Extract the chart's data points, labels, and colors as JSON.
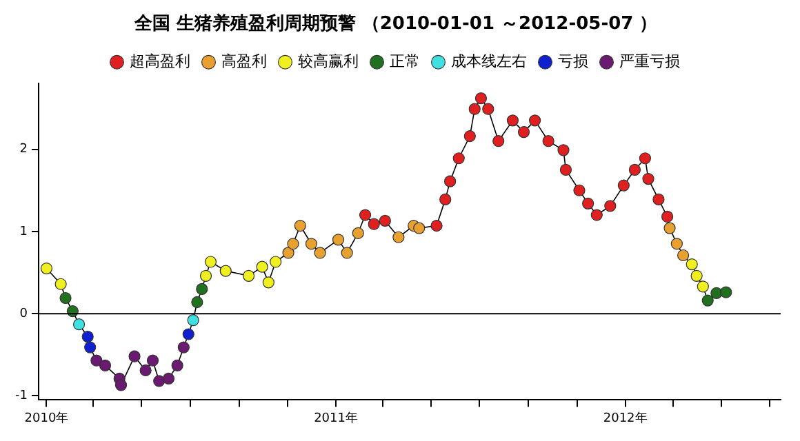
{
  "chart_data": {
    "type": "scatter",
    "title": "全国 生猪养殖盈利周期预警 （2010-01-01 ～2012-05-07 ）",
    "series": [
      {
        "name": "超高盈利",
        "color": "#e02020",
        "x": [
          "2011-02-07",
          "2011-02-18",
          "2011-03-04",
          "2011-05-08",
          "2011-05-19",
          "2011-05-25",
          "2011-06-05",
          "2011-06-19",
          "2011-06-25",
          "2011-07-03",
          "2011-07-12",
          "2011-07-25",
          "2011-08-12",
          "2011-08-26",
          "2011-09-09",
          "2011-09-26",
          "2011-10-15",
          "2011-10-18",
          "2011-11-04",
          "2011-11-15",
          "2011-11-26",
          "2011-12-13",
          "2011-12-30",
          "2012-01-13",
          "2012-01-26",
          "2012-01-30",
          "2012-02-12",
          "2012-02-23"
        ],
        "values": [
          1.2,
          1.09,
          1.13,
          1.07,
          1.39,
          1.61,
          1.89,
          2.16,
          2.49,
          2.62,
          2.49,
          2.1,
          2.35,
          2.21,
          2.35,
          2.1,
          1.99,
          1.75,
          1.5,
          1.34,
          1.2,
          1.31,
          1.56,
          1.75,
          1.89,
          1.64,
          1.39,
          1.18
        ]
      },
      {
        "name": "高盈利",
        "color": "#e8a030",
        "x": [
          "2010-11-02",
          "2010-11-08",
          "2010-11-17",
          "2010-12-01",
          "2010-12-12",
          "2011-01-04",
          "2011-01-15",
          "2011-01-29",
          "2011-03-21",
          "2011-04-09",
          "2011-04-16",
          "2012-02-26",
          "2012-03-06",
          "2012-03-14"
        ],
        "values": [
          0.74,
          0.85,
          1.07,
          0.85,
          0.74,
          0.9,
          0.74,
          0.98,
          0.93,
          1.07,
          1.04,
          1.04,
          0.85,
          0.71
        ]
      },
      {
        "name": "较高赢利",
        "color": "#f0f020",
        "x": [
          "2010-01-01",
          "2010-01-19",
          "2010-07-21",
          "2010-07-27",
          "2010-08-15",
          "2010-09-13",
          "2010-09-30",
          "2010-10-08",
          "2010-10-17",
          "2012-03-25",
          "2012-03-31",
          "2012-04-08"
        ],
        "values": [
          0.55,
          0.36,
          0.46,
          0.63,
          0.52,
          0.46,
          0.57,
          0.38,
          0.63,
          0.6,
          0.46,
          0.33
        ]
      },
      {
        "name": "正常",
        "color": "#207020",
        "x": [
          "2010-01-25",
          "2010-02-03",
          "2010-07-10",
          "2010-07-16",
          "2012-04-14",
          "2012-04-25",
          "2012-05-07"
        ],
        "values": [
          0.19,
          0.03,
          0.14,
          0.3,
          0.16,
          0.25,
          0.26
        ]
      },
      {
        "name": "成本线左右",
        "color": "#40e0e0",
        "x": [
          "2010-02-11",
          "2010-07-05"
        ],
        "values": [
          -0.13,
          -0.08
        ]
      },
      {
        "name": "亏损",
        "color": "#1020d0",
        "x": [
          "2010-02-22",
          "2010-02-25",
          "2010-06-29"
        ],
        "values": [
          -0.28,
          -0.41,
          -0.25
        ]
      },
      {
        "name": "严重亏损",
        "color": "#6a1a70",
        "x": [
          "2010-03-05",
          "2010-03-16",
          "2010-04-03",
          "2010-04-05",
          "2010-04-22",
          "2010-05-06",
          "2010-05-15",
          "2010-05-23",
          "2010-06-04",
          "2010-06-15",
          "2010-06-23"
        ],
        "values": [
          -0.57,
          -0.63,
          -0.79,
          -0.87,
          -0.52,
          -0.69,
          -0.57,
          -0.82,
          -0.79,
          -0.63,
          -0.41
        ]
      },
      {
        "type": "line",
        "color": "#000000",
        "marker": "none",
        "x": [
          "2010-01-01",
          "2010-01-19",
          "2010-01-25",
          "2010-02-03",
          "2010-02-11",
          "2010-02-22",
          "2010-02-25",
          "2010-03-05",
          "2010-03-16",
          "2010-04-03",
          "2010-04-05",
          "2010-04-22",
          "2010-05-06",
          "2010-05-15",
          "2010-05-23",
          "2010-06-04",
          "2010-06-15",
          "2010-06-23",
          "2010-06-29",
          "2010-07-05",
          "2010-07-10",
          "2010-07-16",
          "2010-07-21",
          "2010-07-27",
          "2010-08-15",
          "2010-09-13",
          "2010-09-30",
          "2010-10-08",
          "2010-10-17",
          "2010-11-02",
          "2010-11-08",
          "2010-11-17",
          "2010-12-01",
          "2010-12-12",
          "2011-01-04",
          "2011-01-15",
          "2011-01-29",
          "2011-02-07",
          "2011-02-18",
          "2011-03-04",
          "2011-03-21",
          "2011-04-09",
          "2011-04-16",
          "2011-05-08",
          "2011-05-19",
          "2011-05-25",
          "2011-06-05",
          "2011-06-19",
          "2011-06-25",
          "2011-07-03",
          "2011-07-12",
          "2011-07-25",
          "2011-08-12",
          "2011-08-26",
          "2011-09-09",
          "2011-09-26",
          "2011-10-15",
          "2011-10-18",
          "2011-11-04",
          "2011-11-15",
          "2011-11-26",
          "2011-12-13",
          "2011-12-30",
          "2012-01-13",
          "2012-01-26",
          "2012-01-30",
          "2012-02-12",
          "2012-02-23",
          "2012-02-26",
          "2012-03-06",
          "2012-03-14",
          "2012-03-25",
          "2012-03-31",
          "2012-04-08",
          "2012-04-14",
          "2012-04-25",
          "2012-05-07"
        ],
        "values": [
          0.55,
          0.36,
          0.19,
          0.03,
          -0.13,
          -0.28,
          -0.41,
          -0.57,
          -0.63,
          -0.79,
          -0.87,
          -0.52,
          -0.69,
          -0.57,
          -0.82,
          -0.79,
          -0.63,
          -0.41,
          -0.25,
          -0.08,
          0.14,
          0.3,
          0.46,
          0.63,
          0.52,
          0.46,
          0.57,
          0.38,
          0.63,
          0.74,
          0.85,
          1.07,
          0.85,
          0.74,
          0.9,
          0.74,
          0.98,
          1.2,
          1.09,
          1.13,
          0.93,
          1.07,
          1.04,
          1.07,
          1.39,
          1.61,
          1.89,
          2.16,
          2.49,
          2.62,
          2.49,
          2.1,
          2.35,
          2.21,
          2.35,
          2.1,
          1.99,
          1.75,
          1.5,
          1.34,
          1.2,
          1.31,
          1.56,
          1.75,
          1.89,
          1.64,
          1.39,
          1.18,
          1.04,
          0.85,
          0.71,
          0.6,
          0.46,
          0.33,
          0.16,
          0.25,
          0.26
        ]
      }
    ],
    "xlim": [
      "2009-12-22",
      "2012-07-15"
    ],
    "xticks": [
      {
        "value": "2010-01-01",
        "label": "2010年"
      },
      {
        "value": "2010-03-01",
        "label": null
      },
      {
        "value": "2010-05-01",
        "label": null
      },
      {
        "value": "2010-07-01",
        "label": null
      },
      {
        "value": "2010-09-01",
        "label": null
      },
      {
        "value": "2010-11-01",
        "label": null
      },
      {
        "value": "2011-01-01",
        "label": "2011年"
      },
      {
        "value": "2011-03-01",
        "label": null
      },
      {
        "value": "2011-05-01",
        "label": null
      },
      {
        "value": "2011-07-01",
        "label": null
      },
      {
        "value": "2011-09-01",
        "label": null
      },
      {
        "value": "2011-11-01",
        "label": null
      },
      {
        "value": "2012-01-01",
        "label": "2012年"
      },
      {
        "value": "2012-03-01",
        "label": null
      },
      {
        "value": "2012-05-01",
        "label": null
      },
      {
        "value": "2012-07-01",
        "label": null
      }
    ],
    "ylim": [
      -1.05,
      2.8
    ],
    "yticks": [
      -1,
      0,
      1,
      2
    ],
    "ref_lines": [
      {
        "axis": "y",
        "value": 0,
        "color": "#000000"
      }
    ],
    "marker": "circle",
    "legend": "top",
    "grid": false
  }
}
